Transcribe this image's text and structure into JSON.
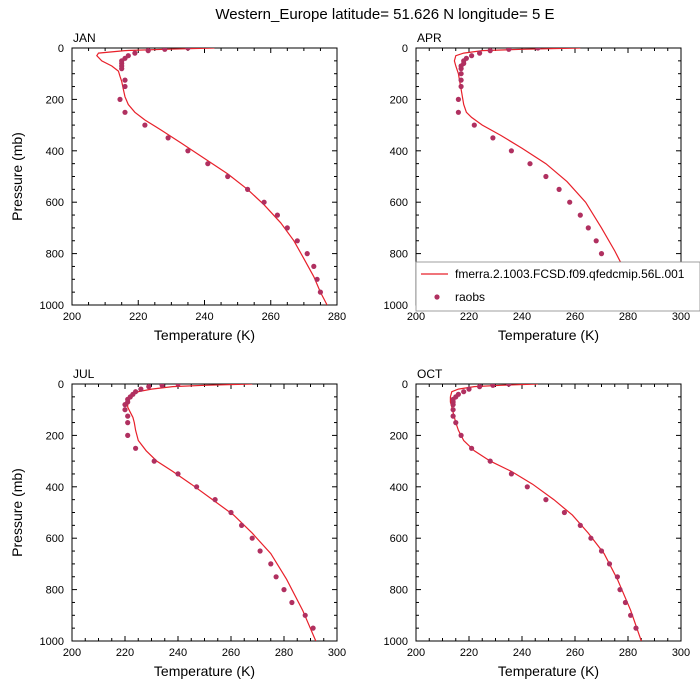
{
  "title": "Western_Europe  latitude= 51.626 N longitude= 5 E",
  "colors": {
    "model": "#e8202a",
    "obs": "#b03060"
  },
  "legend": {
    "model_label": "fmerra.2.1003.FCSD.f09.qfedcmip.56L.001",
    "obs_label": "raobs"
  },
  "chart_data": [
    {
      "type": "line",
      "panel_title": "JAN",
      "xlabel": "Temperature (K)",
      "ylabel": "Pressure (mb)",
      "xlim": [
        200,
        280
      ],
      "ylim": [
        1000,
        0
      ],
      "x_ticks": [
        200,
        220,
        240,
        260,
        280
      ],
      "y_ticks": [
        0,
        200,
        400,
        600,
        800,
        1000
      ],
      "series": [
        {
          "kind": "model",
          "style": "line",
          "x": [
            243,
            228,
            216,
            208,
            207.5,
            209,
            212,
            214,
            214.5,
            215,
            215.5,
            216,
            217,
            219,
            222,
            227,
            233,
            240,
            247,
            253,
            258,
            263,
            267,
            270,
            273,
            275,
            277
          ],
          "y": [
            0,
            5,
            10,
            20,
            30,
            50,
            70,
            90,
            110,
            130,
            160,
            190,
            220,
            250,
            280,
            320,
            370,
            430,
            490,
            550,
            610,
            680,
            750,
            820,
            890,
            950,
            1000
          ]
        },
        {
          "kind": "obs",
          "style": "points",
          "x": [
            235,
            228,
            223,
            219,
            217,
            216,
            215,
            215,
            215,
            215,
            216,
            216,
            214.5,
            216,
            222,
            229,
            235,
            241,
            247,
            253,
            258,
            262,
            265,
            268,
            271,
            273,
            274,
            275
          ],
          "y": [
            0,
            5,
            10,
            20,
            30,
            40,
            50,
            60,
            70,
            80,
            125,
            150,
            200,
            250,
            300,
            350,
            400,
            450,
            500,
            550,
            600,
            650,
            700,
            750,
            800,
            850,
            900,
            950
          ]
        }
      ]
    },
    {
      "type": "line",
      "panel_title": "APR",
      "xlabel": "Temperature (K)",
      "ylabel": "",
      "xlim": [
        200,
        300
      ],
      "ylim": [
        1000,
        0
      ],
      "x_ticks": [
        200,
        220,
        240,
        260,
        280,
        300
      ],
      "y_ticks": [
        0,
        200,
        400,
        600,
        800,
        1000
      ],
      "series": [
        {
          "kind": "model",
          "style": "line",
          "x": [
            262,
            240,
            225,
            218,
            215,
            214.5,
            215,
            216,
            216.5,
            217,
            217.5,
            218,
            219,
            221,
            225,
            232,
            240,
            249,
            257,
            264,
            270,
            275,
            280,
            285
          ],
          "y": [
            0,
            5,
            10,
            20,
            30,
            50,
            70,
            100,
            130,
            160,
            190,
            220,
            250,
            270,
            300,
            340,
            390,
            450,
            520,
            600,
            700,
            790,
            890,
            1000
          ]
        },
        {
          "kind": "obs",
          "style": "points",
          "x": [
            246,
            235,
            228,
            224,
            221,
            219,
            218,
            218,
            217,
            217,
            217,
            217,
            217,
            216,
            216,
            222,
            229,
            236,
            243,
            249,
            254,
            258,
            262,
            265,
            268,
            270,
            273,
            276,
            280,
            283
          ],
          "y": [
            0,
            5,
            10,
            20,
            30,
            40,
            50,
            60,
            70,
            80,
            100,
            125,
            150,
            200,
            250,
            300,
            350,
            400,
            450,
            500,
            550,
            600,
            650,
            700,
            750,
            800,
            850,
            900,
            950,
            1000
          ]
        }
      ]
    },
    {
      "type": "line",
      "panel_title": "JUL",
      "xlabel": "Temperature (K)",
      "ylabel": "Pressure (mb)",
      "xlim": [
        200,
        300
      ],
      "ylim": [
        1000,
        0
      ],
      "x_ticks": [
        200,
        220,
        240,
        260,
        280,
        300
      ],
      "y_ticks": [
        0,
        200,
        400,
        600,
        800,
        1000
      ],
      "series": [
        {
          "kind": "model",
          "style": "line",
          "x": [
            268,
            250,
            238,
            230,
            225,
            222,
            221,
            221,
            222,
            223,
            223.5,
            224,
            225,
            228,
            232,
            238,
            245,
            253,
            261,
            268,
            275,
            281,
            287,
            292
          ],
          "y": [
            0,
            5,
            10,
            20,
            30,
            50,
            70,
            90,
            110,
            130,
            150,
            180,
            220,
            260,
            300,
            340,
            390,
            450,
            510,
            580,
            660,
            760,
            880,
            1000
          ]
        },
        {
          "kind": "obs",
          "style": "points",
          "x": [
            240,
            234,
            229,
            226,
            224,
            223,
            222,
            221,
            221,
            220,
            220,
            221,
            221,
            221,
            224,
            231,
            240,
            247,
            254,
            260,
            264,
            268,
            271,
            275,
            277,
            280,
            283,
            288,
            291
          ],
          "y": [
            0,
            5,
            10,
            20,
            30,
            40,
            50,
            60,
            70,
            80,
            100,
            125,
            150,
            200,
            250,
            300,
            350,
            400,
            450,
            500,
            550,
            600,
            650,
            700,
            750,
            800,
            850,
            900,
            950
          ]
        }
      ]
    },
    {
      "type": "line",
      "panel_title": "OCT",
      "xlabel": "Temperature (K)",
      "ylabel": "",
      "xlim": [
        200,
        300
      ],
      "ylim": [
        1000,
        0
      ],
      "x_ticks": [
        200,
        220,
        240,
        260,
        280,
        300
      ],
      "y_ticks": [
        0,
        200,
        400,
        600,
        800,
        1000
      ],
      "series": [
        {
          "kind": "model",
          "style": "line",
          "x": [
            246,
            232,
            222,
            216,
            213.5,
            213,
            213,
            213.5,
            214,
            214.5,
            215,
            216,
            218,
            222,
            228,
            236,
            244,
            252,
            259,
            265,
            271,
            276,
            281,
            285
          ],
          "y": [
            0,
            5,
            10,
            20,
            30,
            50,
            70,
            90,
            110,
            130,
            150,
            180,
            220,
            260,
            300,
            340,
            390,
            450,
            510,
            580,
            660,
            760,
            880,
            1000
          ]
        },
        {
          "kind": "obs",
          "style": "points",
          "x": [
            235,
            229,
            224,
            220,
            218,
            216,
            215,
            214,
            214,
            214,
            214,
            214,
            215,
            217,
            221,
            228,
            236,
            242,
            249,
            256,
            262,
            266,
            270,
            273,
            276,
            277,
            279,
            281,
            283
          ],
          "y": [
            0,
            5,
            10,
            20,
            30,
            40,
            50,
            60,
            70,
            80,
            100,
            125,
            150,
            200,
            250,
            300,
            350,
            400,
            450,
            500,
            550,
            600,
            650,
            700,
            750,
            800,
            850,
            900,
            950
          ]
        }
      ]
    }
  ]
}
